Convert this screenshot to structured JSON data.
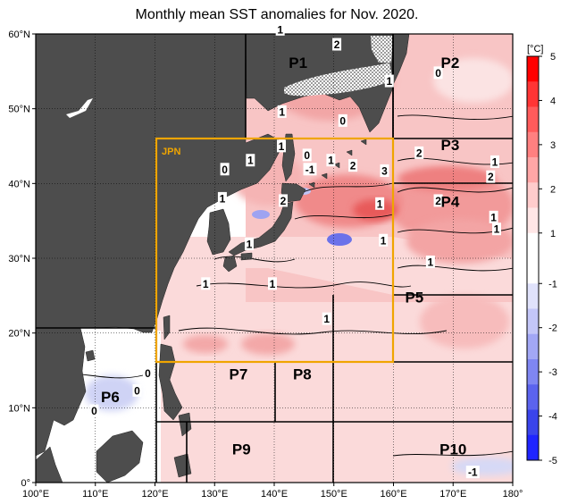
{
  "title": "Monthly mean SST anomalies for Nov. 2020.",
  "colors": {
    "land": "#4d4d4d",
    "ocean_neutral": "#ffffff",
    "frame": "#000000",
    "jpn_box": "#f0a500",
    "positive_strong": "#ff2020",
    "positive_mid": "#f3a0a0",
    "positive_weak": "#fbd9d9",
    "negative_weak": "#d8daf5",
    "negative_strong": "#2030ff"
  },
  "axes": {
    "lon_ticks": [
      100,
      110,
      120,
      130,
      140,
      150,
      160,
      170,
      180
    ],
    "lon_labels": [
      "100°E",
      "110°E",
      "120°E",
      "130°E",
      "140°E",
      "150°E",
      "160°E",
      "170°E",
      "180°"
    ],
    "lat_ticks": [
      0,
      10,
      20,
      30,
      40,
      50,
      60
    ],
    "lat_labels": [
      "0°",
      "10°N",
      "20°N",
      "30°N",
      "40°N",
      "50°N",
      "60°N"
    ]
  },
  "colorbar": {
    "unit": "[°C]",
    "ticks": [
      5,
      4,
      3,
      2,
      1,
      -1,
      -2,
      -3,
      -4,
      -5
    ],
    "tick_labels": [
      "5",
      "4",
      "3",
      "2",
      "1",
      "-1",
      "-2",
      "-3",
      "-4",
      "-5"
    ],
    "colors": [
      "#ff0000",
      "#ff3535",
      "#ff5b5b",
      "#ff8080",
      "#ffa6a6",
      "#ffcccc",
      "#ffe6e6",
      "#ffffff",
      "#ffffff",
      "#e0e2fb",
      "#c3c6f8",
      "#a2a7f5",
      "#7f86f2",
      "#5b63ee",
      "#3a44eb",
      "#1f24ff"
    ]
  },
  "jpn_box_label": "JPN",
  "regions": [
    {
      "name": "P1",
      "lon": 144,
      "lat": 56.2
    },
    {
      "name": "P2",
      "lon": 169.5,
      "lat": 56.2
    },
    {
      "name": "P3",
      "lon": 169.5,
      "lat": 45.2
    },
    {
      "name": "P4",
      "lon": 169.5,
      "lat": 37.6
    },
    {
      "name": "P5",
      "lon": 163.5,
      "lat": 24.8
    },
    {
      "name": "P6",
      "lon": 112.5,
      "lat": 11.5
    },
    {
      "name": "P7",
      "lon": 134.0,
      "lat": 14.5
    },
    {
      "name": "P8",
      "lon": 144.7,
      "lat": 14.5
    },
    {
      "name": "P9",
      "lon": 134.5,
      "lat": 4.5
    },
    {
      "name": "P10",
      "lon": 170.0,
      "lat": 4.5
    }
  ],
  "contour_labels": [
    {
      "text": "1",
      "lon": 141.0,
      "lat": 60.5
    },
    {
      "text": "2",
      "lon": 150.5,
      "lat": 58.5
    },
    {
      "text": "1",
      "lon": 159.3,
      "lat": 53.6
    },
    {
      "text": "0",
      "lon": 167.5,
      "lat": 54.7
    },
    {
      "text": "0",
      "lon": 151.5,
      "lat": 48.3
    },
    {
      "text": "1",
      "lon": 141.3,
      "lat": 49.5
    },
    {
      "text": "2",
      "lon": 164.3,
      "lat": 44.0
    },
    {
      "text": "1",
      "lon": 177.0,
      "lat": 42.8
    },
    {
      "text": "0",
      "lon": 145.5,
      "lat": 43.7
    },
    {
      "text": "1",
      "lon": 149.5,
      "lat": 43.0
    },
    {
      "text": "-1",
      "lon": 146.0,
      "lat": 41.8
    },
    {
      "text": "2",
      "lon": 153.2,
      "lat": 42.3
    },
    {
      "text": "3",
      "lon": 158.5,
      "lat": 41.6
    },
    {
      "text": "1",
      "lon": 141.2,
      "lat": 44.9
    },
    {
      "text": "1",
      "lon": 136.0,
      "lat": 43.0
    },
    {
      "text": "0",
      "lon": 131.7,
      "lat": 41.8
    },
    {
      "text": "2",
      "lon": 176.3,
      "lat": 40.8
    },
    {
      "text": "2",
      "lon": 167.5,
      "lat": 37.6
    },
    {
      "text": "1",
      "lon": 131.3,
      "lat": 37.9
    },
    {
      "text": "2",
      "lon": 141.5,
      "lat": 37.6
    },
    {
      "text": "1",
      "lon": 157.7,
      "lat": 37.2
    },
    {
      "text": "1",
      "lon": 176.8,
      "lat": 35.4
    },
    {
      "text": "1",
      "lon": 177.3,
      "lat": 33.8
    },
    {
      "text": "1",
      "lon": 158.3,
      "lat": 32.3
    },
    {
      "text": "1",
      "lon": 135.8,
      "lat": 31.8
    },
    {
      "text": "1",
      "lon": 166.2,
      "lat": 29.4
    },
    {
      "text": "1",
      "lon": 128.5,
      "lat": 26.5
    },
    {
      "text": "1",
      "lon": 139.7,
      "lat": 26.5
    },
    {
      "text": "1",
      "lon": 148.8,
      "lat": 21.8
    },
    {
      "text": "0",
      "lon": 118.8,
      "lat": 14.5
    },
    {
      "text": "0",
      "lon": 117.0,
      "lat": 12.2
    },
    {
      "text": "0",
      "lon": 109.8,
      "lat": 9.5
    },
    {
      "text": "-1",
      "lon": 173.3,
      "lat": 1.3
    }
  ]
}
